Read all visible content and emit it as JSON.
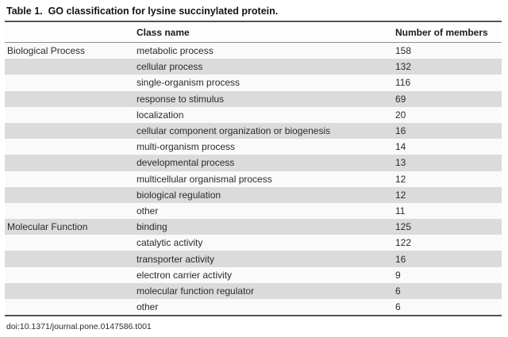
{
  "title": "Table 1.  GO classification for lysine succinylated protein.",
  "table": {
    "columns": [
      "",
      "Class name",
      "Number of members"
    ],
    "groups": [
      {
        "name": "Biological Process",
        "rows": [
          {
            "class_name": "metabolic process",
            "members": "158"
          },
          {
            "class_name": "cellular process",
            "members": "132"
          },
          {
            "class_name": "single-organism process",
            "members": "116"
          },
          {
            "class_name": "response to stimulus",
            "members": "69"
          },
          {
            "class_name": "localization",
            "members": "20"
          },
          {
            "class_name": "cellular component organization or biogenesis",
            "members": "16"
          },
          {
            "class_name": "multi-organism process",
            "members": "14"
          },
          {
            "class_name": "developmental process",
            "members": "13"
          },
          {
            "class_name": "multicellular organismal process",
            "members": "12"
          },
          {
            "class_name": "biological regulation",
            "members": "12"
          },
          {
            "class_name": "other",
            "members": "11"
          }
        ]
      },
      {
        "name": "Molecular Function",
        "rows": [
          {
            "class_name": "binding",
            "members": "125"
          },
          {
            "class_name": "catalytic activity",
            "members": "122"
          },
          {
            "class_name": "transporter activity",
            "members": "16"
          },
          {
            "class_name": "electron carrier activity",
            "members": "9"
          },
          {
            "class_name": "molecular function regulator",
            "members": "6"
          },
          {
            "class_name": "other",
            "members": "6"
          }
        ]
      }
    ]
  },
  "footer": {
    "doi": "doi:10.1371/journal.pone.0147586.t001"
  },
  "colors": {
    "row_alt": "#dbdbdb",
    "rule": "#555555"
  }
}
